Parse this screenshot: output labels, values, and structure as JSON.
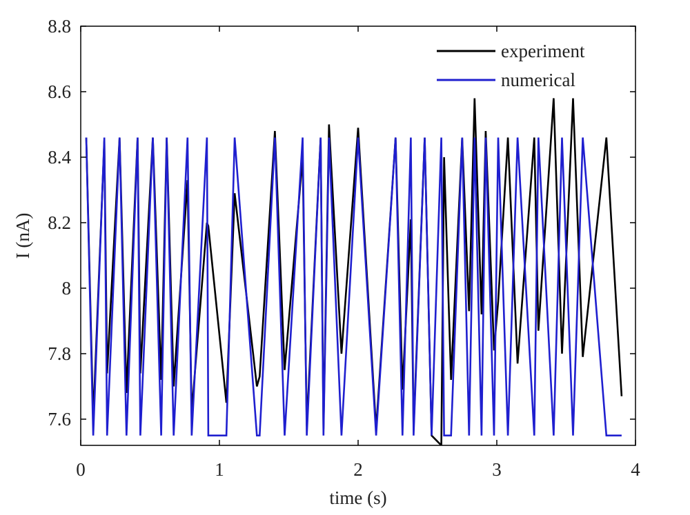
{
  "chart_data": {
    "type": "line",
    "xlabel": "time (s)",
    "ylabel": "I (nA)",
    "xlim": [
      0,
      4
    ],
    "ylim": [
      7.52,
      8.8
    ],
    "xticks": [
      0,
      1,
      2,
      3,
      4
    ],
    "xtick_labels": [
      "0",
      "1",
      "2",
      "3",
      "4"
    ],
    "yticks": [
      7.6,
      7.8,
      8.0,
      8.2,
      8.4,
      8.6,
      8.8
    ],
    "ytick_labels": [
      "7.6",
      "7.8",
      "8",
      "8.2",
      "8.4",
      "8.6",
      "8.8"
    ],
    "grid": false,
    "legend_position": "top-right",
    "series": [
      {
        "name": "experiment",
        "color": "#000000",
        "x": [
          0.04,
          0.09,
          0.17,
          0.19,
          0.28,
          0.33,
          0.41,
          0.43,
          0.52,
          0.58,
          0.62,
          0.67,
          0.77,
          0.8,
          0.91,
          0.92,
          1.05,
          1.11,
          1.27,
          1.29,
          1.4,
          1.47,
          1.6,
          1.63,
          1.73,
          1.75,
          1.79,
          1.88,
          2.0,
          2.13,
          2.27,
          2.32,
          2.38,
          2.4,
          2.48,
          2.53,
          2.6,
          2.62,
          2.67,
          2.75,
          2.8,
          2.84,
          2.89,
          2.92,
          2.98,
          3.01,
          3.08,
          3.15,
          3.27,
          3.3,
          3.41,
          3.47,
          3.55,
          3.62,
          3.79,
          3.9
        ],
        "y": [
          8.46,
          7.6,
          8.45,
          7.74,
          8.46,
          7.68,
          8.46,
          7.74,
          8.46,
          7.72,
          8.46,
          7.7,
          8.33,
          7.62,
          8.2,
          8.19,
          7.65,
          8.29,
          7.7,
          7.73,
          8.48,
          7.75,
          8.4,
          7.58,
          8.46,
          7.57,
          8.5,
          7.8,
          8.49,
          7.57,
          8.46,
          7.69,
          8.21,
          7.57,
          8.46,
          7.55,
          7.52,
          8.4,
          7.72,
          8.46,
          7.93,
          8.58,
          7.92,
          8.48,
          7.81,
          7.96,
          8.46,
          7.77,
          8.46,
          7.87,
          8.58,
          7.8,
          8.58,
          7.79,
          8.46,
          7.67
        ]
      },
      {
        "name": "numerical",
        "color": "#1f1fcf",
        "x": [
          0.04,
          0.09,
          0.17,
          0.19,
          0.28,
          0.33,
          0.41,
          0.43,
          0.52,
          0.58,
          0.62,
          0.67,
          0.77,
          0.8,
          0.91,
          0.92,
          1.05,
          1.11,
          1.27,
          1.29,
          1.4,
          1.47,
          1.6,
          1.63,
          1.73,
          1.75,
          1.79,
          1.88,
          2.0,
          2.13,
          2.27,
          2.32,
          2.38,
          2.4,
          2.48,
          2.53,
          2.6,
          2.62,
          2.67,
          2.75,
          2.8,
          2.84,
          2.89,
          2.92,
          2.98,
          3.01,
          3.08,
          3.15,
          3.27,
          3.3,
          3.41,
          3.47,
          3.55,
          3.62,
          3.79,
          3.9
        ],
        "y": [
          8.46,
          7.55,
          8.46,
          7.55,
          8.46,
          7.55,
          8.46,
          7.55,
          8.46,
          7.55,
          8.46,
          7.55,
          8.46,
          7.55,
          8.46,
          7.55,
          7.55,
          8.46,
          7.55,
          7.55,
          8.46,
          7.55,
          8.46,
          7.55,
          8.46,
          7.55,
          8.46,
          7.55,
          8.46,
          7.55,
          8.46,
          7.55,
          8.46,
          7.55,
          8.46,
          7.55,
          8.46,
          7.55,
          7.55,
          8.46,
          7.55,
          8.46,
          7.55,
          8.46,
          7.55,
          8.46,
          7.55,
          8.46,
          7.55,
          8.46,
          7.55,
          8.46,
          7.55,
          8.46,
          7.55,
          7.55
        ]
      }
    ]
  }
}
